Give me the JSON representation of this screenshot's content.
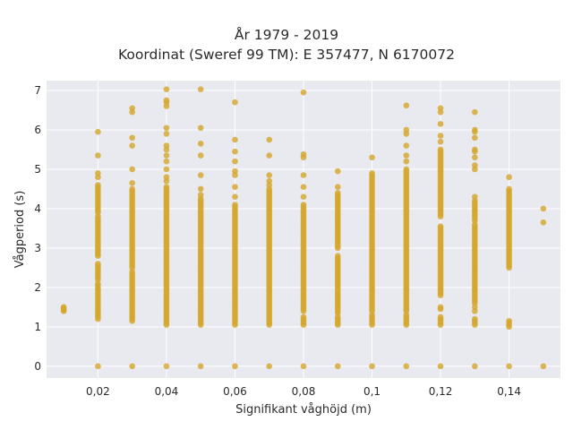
{
  "chart_data": {
    "type": "scatter",
    "title": "År 1979 - 2019",
    "subtitle": "Koordinat (Sweref 99 TM): E 357477, N 6170072",
    "xlabel": "Signifikant våghöjd (m)",
    "ylabel": "Vågperiod (s)",
    "xlim": [
      0.005,
      0.155
    ],
    "ylim": [
      -0.3,
      7.25
    ],
    "x_ticks": [
      0.02,
      0.04,
      0.06,
      0.08,
      0.1,
      0.12,
      0.14
    ],
    "x_tick_labels": [
      "0,02",
      "0,04",
      "0,06",
      "0,08",
      "0,1",
      "0,12",
      "0,14"
    ],
    "y_ticks": [
      0,
      1,
      2,
      3,
      4,
      5,
      6,
      7
    ],
    "y_tick_labels": [
      "0",
      "1",
      "2",
      "3",
      "4",
      "5",
      "6",
      "7"
    ],
    "grid": true,
    "legend": "none",
    "marker_color": "#d4a72c",
    "plot_background": "#e9e9f0",
    "columns": [
      {
        "x": 0.01,
        "ranges": [
          [
            1.4,
            1.5
          ]
        ],
        "points": [
          1.42,
          1.48
        ]
      },
      {
        "x": 0.02,
        "ranges": [
          [
            1.2,
            2.1
          ],
          [
            2.2,
            2.6
          ],
          [
            2.8,
            3.8
          ],
          [
            3.9,
            4.6
          ]
        ],
        "points": [
          0,
          4.8,
          4.9,
          5.35,
          5.95
        ]
      },
      {
        "x": 0.03,
        "ranges": [
          [
            1.15,
            2.4
          ],
          [
            2.5,
            4.5
          ]
        ],
        "points": [
          0,
          4.65,
          5.0,
          5.6,
          5.8,
          6.45,
          6.55
        ]
      },
      {
        "x": 0.04,
        "ranges": [
          [
            1.05,
            4.55
          ]
        ],
        "points": [
          0,
          4.7,
          4.8,
          5.0,
          5.2,
          5.35,
          5.5,
          5.6,
          5.9,
          6.05,
          6.6,
          6.7,
          6.75,
          7.03
        ]
      },
      {
        "x": 0.05,
        "ranges": [
          [
            1.05,
            4.25
          ]
        ],
        "points": [
          0,
          4.35,
          4.5,
          4.85,
          5.35,
          5.65,
          6.05,
          7.03
        ]
      },
      {
        "x": 0.06,
        "ranges": [
          [
            1.05,
            4.1
          ]
        ],
        "points": [
          0,
          4.3,
          4.55,
          4.85,
          4.95,
          5.2,
          5.45,
          5.75,
          6.7
        ]
      },
      {
        "x": 0.07,
        "ranges": [
          [
            1.05,
            4.5
          ]
        ],
        "points": [
          0,
          4.6,
          4.7,
          4.85,
          5.35,
          5.75
        ]
      },
      {
        "x": 0.08,
        "ranges": [
          [
            1.05,
            1.25
          ],
          [
            1.4,
            4.1
          ]
        ],
        "points": [
          0,
          4.3,
          4.55,
          4.85,
          5.3,
          5.38,
          6.95
        ]
      },
      {
        "x": 0.09,
        "ranges": [
          [
            1.05,
            1.25
          ],
          [
            1.35,
            2.8
          ],
          [
            3.0,
            4.4
          ]
        ],
        "points": [
          0,
          4.55,
          4.95
        ]
      },
      {
        "x": 0.1,
        "ranges": [
          [
            1.05,
            1.3
          ],
          [
            1.4,
            4.9
          ]
        ],
        "points": [
          0,
          5.3
        ]
      },
      {
        "x": 0.11,
        "ranges": [
          [
            1.05,
            1.3
          ],
          [
            1.4,
            5.0
          ]
        ],
        "points": [
          0,
          5.2,
          5.35,
          5.6,
          5.9,
          6.0,
          6.62
        ]
      },
      {
        "x": 0.12,
        "ranges": [
          [
            1.05,
            1.25
          ],
          [
            1.8,
            3.55
          ],
          [
            3.8,
            5.5
          ]
        ],
        "points": [
          0,
          1.45,
          1.5,
          5.7,
          5.85,
          6.15,
          6.45,
          6.55
        ]
      },
      {
        "x": 0.13,
        "ranges": [
          [
            1.05,
            1.2
          ],
          [
            1.6,
            3.6
          ],
          [
            3.7,
            4.2
          ]
        ],
        "points": [
          0,
          1.4,
          1.5,
          4.3,
          5.0,
          5.1,
          5.3,
          5.45,
          5.5,
          5.8,
          5.95,
          6.0,
          6.45
        ]
      },
      {
        "x": 0.14,
        "ranges": [
          [
            1.0,
            1.15
          ],
          [
            2.5,
            4.5
          ]
        ],
        "points": [
          0,
          4.8
        ]
      },
      {
        "x": 0.15,
        "ranges": [],
        "points": [
          0,
          3.65,
          4.0
        ]
      }
    ]
  }
}
